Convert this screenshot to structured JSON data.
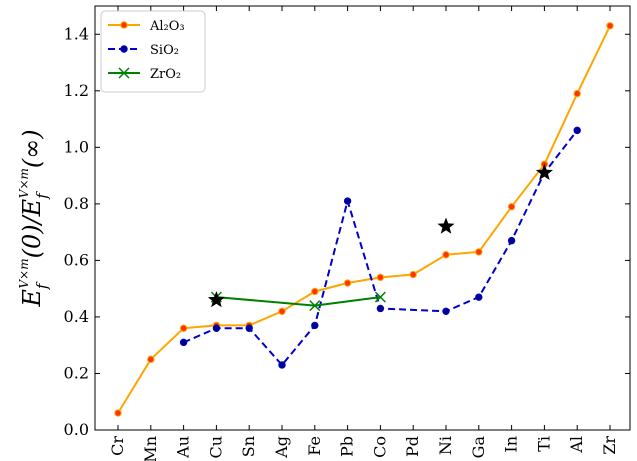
{
  "chart_data": {
    "type": "line",
    "ylabel": "E_f^{V×m}(0)/E_f^{V×m}(∞)",
    "ylabel_display": "E f V×m (0)/E f V×m (∞)",
    "ylim": [
      0.0,
      1.5
    ],
    "yticks": [
      0.0,
      0.2,
      0.4,
      0.6,
      0.8,
      1.0,
      1.2,
      1.4
    ],
    "ytick_labels": [
      "0.0",
      "0.2",
      "0.4",
      "0.6",
      "0.8",
      "1.0",
      "1.2",
      "1.4"
    ],
    "categories": [
      "Cr",
      "Mn",
      "Au",
      "Cu",
      "Sn",
      "Ag",
      "Fe",
      "Pb",
      "Co",
      "Pd",
      "Ni",
      "Ga",
      "In",
      "Ti",
      "Al",
      "Zr"
    ],
    "grid": false,
    "legend_position": "top-left",
    "series": [
      {
        "name": "Al2O3",
        "legend_label": "Al₂O₃",
        "color": "#FFA500",
        "marker_color": "#FF3300",
        "line_style": "solid",
        "marker": "circle",
        "values": [
          0.06,
          0.25,
          0.36,
          0.37,
          0.37,
          0.42,
          0.49,
          0.52,
          0.54,
          0.55,
          0.62,
          0.63,
          0.79,
          0.94,
          1.19,
          1.43
        ]
      },
      {
        "name": "SiO2",
        "legend_label": "SiO₂",
        "color": "#0000CC",
        "marker_color": "#00008B",
        "line_style": "dashed",
        "marker": "circle",
        "values": [
          null,
          null,
          0.31,
          0.36,
          0.36,
          0.23,
          0.37,
          0.81,
          0.43,
          null,
          0.42,
          0.47,
          0.67,
          0.91,
          1.06,
          null
        ]
      },
      {
        "name": "ZrO2",
        "legend_label": "ZrO₂",
        "color": "#008000",
        "marker_color": "#008000",
        "line_style": "solid",
        "marker": "x",
        "values": [
          null,
          null,
          null,
          0.47,
          null,
          null,
          0.44,
          null,
          0.47,
          null,
          null,
          null,
          null,
          null,
          null,
          null
        ]
      }
    ],
    "star_markers": {
      "color": "#000000",
      "points": [
        {
          "category": "Cu",
          "value": 0.46
        },
        {
          "category": "Ni",
          "value": 0.72
        },
        {
          "category": "Ti",
          "value": 0.91
        }
      ]
    }
  }
}
